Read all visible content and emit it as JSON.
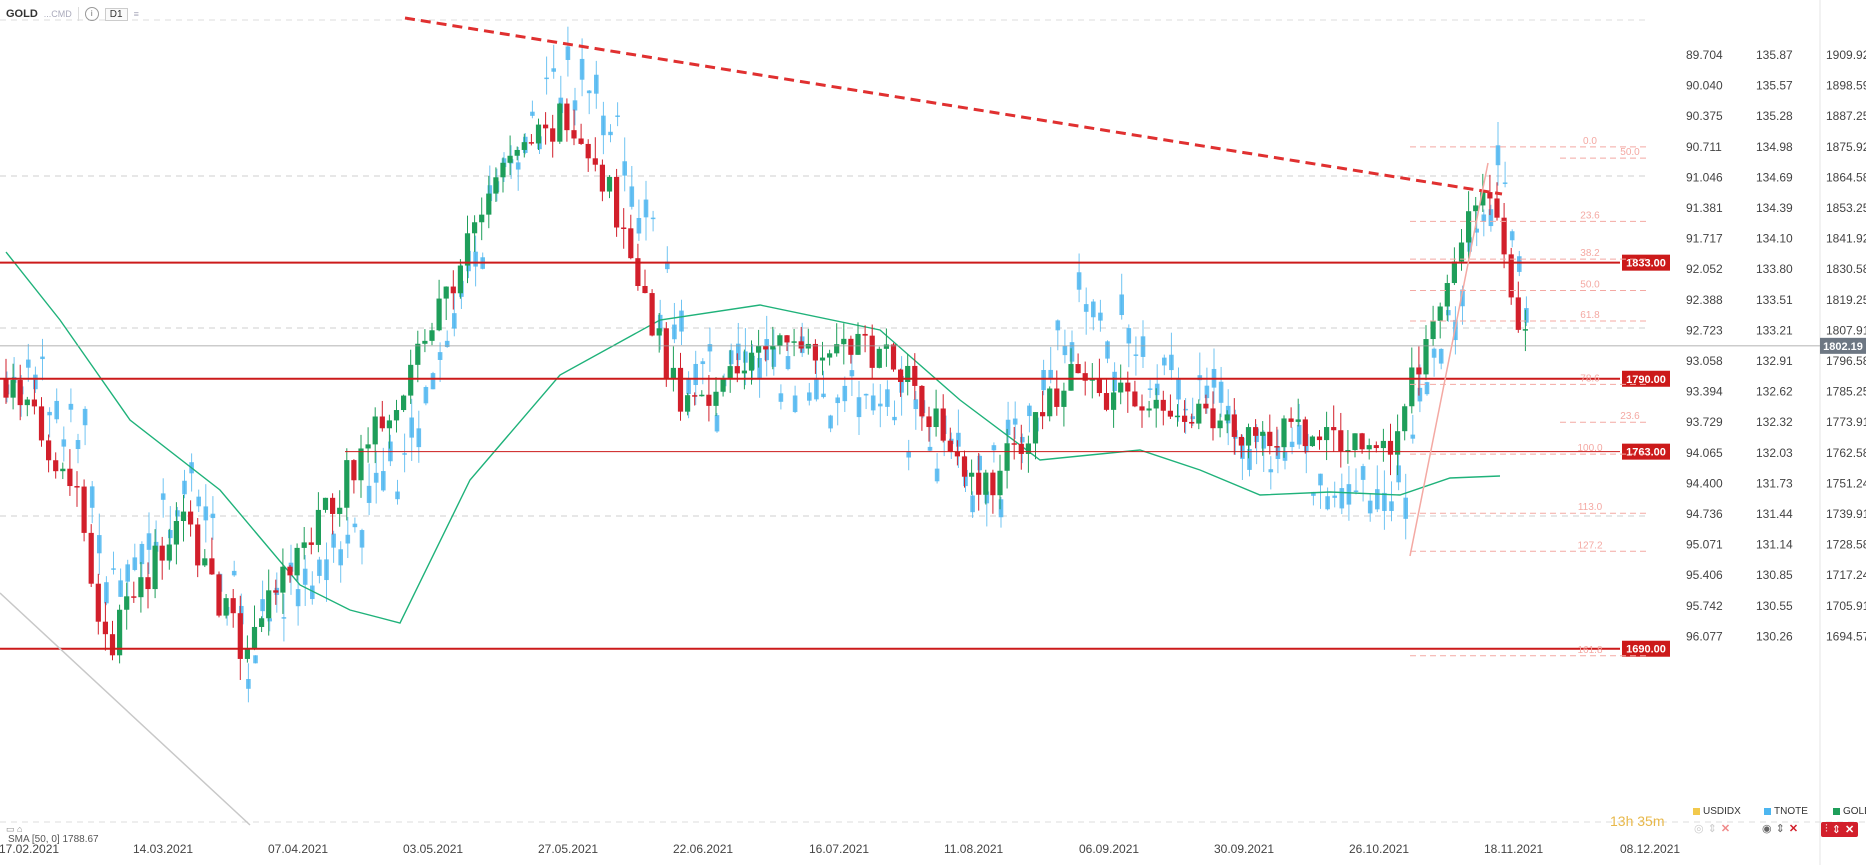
{
  "toolbar": {
    "symbol": "GOLD",
    "symbol_sub": "...CMD",
    "timeframe": "D1"
  },
  "sma_label": "SMA [50, 0] 1788.67",
  "timer": "13h 35m",
  "legend": [
    {
      "name": "USDIDX",
      "color": "#f2c94c"
    },
    {
      "name": "TNOTE",
      "color": "#4db6f0"
    },
    {
      "name": "GOLD",
      "color": "#1e9e5a"
    }
  ],
  "colors": {
    "up": "#1e9e5a",
    "down": "#d21f2b",
    "secondary": "#4db6f0",
    "sma": "#1fb27a",
    "level": "#cc1a1a",
    "fib": "#f4a9a3"
  },
  "chart_data": {
    "type": "candlestick",
    "axis_usdidx": [
      "89.704",
      "90.040",
      "90.375",
      "90.711",
      "91.046",
      "91.381",
      "91.717",
      "92.052",
      "92.388",
      "92.723",
      "93.058",
      "93.394",
      "93.729",
      "94.065",
      "94.400",
      "94.736",
      "95.071",
      "95.406",
      "95.742",
      "96.077"
    ],
    "axis_tnote": [
      "135.87",
      "135.57",
      "135.28",
      "134.98",
      "134.69",
      "134.39",
      "134.10",
      "133.80",
      "133.51",
      "133.21",
      "132.91",
      "132.62",
      "132.32",
      "132.03",
      "131.73",
      "131.44",
      "131.14",
      "130.85",
      "130.55",
      "130.26"
    ],
    "axis_gold": [
      "1909.92",
      "1898.59",
      "1887.25",
      "1875.92",
      "1864.58",
      "1853.25",
      "1841.92",
      "1830.58",
      "1819.25",
      "1807.91",
      "1796.58",
      "1785.25",
      "1773.91",
      "1762.58",
      "1751.24",
      "1739.91",
      "1728.58",
      "1717.24",
      "1705.91",
      "1694.57"
    ],
    "x_labels": [
      "17.02.2021",
      "14.03.2021",
      "07.04.2021",
      "03.05.2021",
      "27.05.2021",
      "22.06.2021",
      "16.07.2021",
      "11.08.2021",
      "06.09.2021",
      "30.09.2021",
      "26.10.2021",
      "18.11.2021",
      "08.12.2021"
    ],
    "current_price": "1802.19",
    "levels": [
      {
        "label": "1833.00",
        "value": 1833.0
      },
      {
        "label": "1790.00",
        "value": 1790.0
      },
      {
        "label": "1763.00",
        "value": 1763.0
      },
      {
        "label": "1690.00",
        "value": 1690.0
      }
    ],
    "fib_levels": [
      {
        "label": "0.0",
        "value": 1875.9
      },
      {
        "label": "50.0",
        "value": 1871.7
      },
      {
        "label": "23.6",
        "value": 1848.3
      },
      {
        "label": "38.2",
        "value": 1834.3
      },
      {
        "label": "50.0",
        "value": 1822.7
      },
      {
        "label": "61.8",
        "value": 1811.4
      },
      {
        "label": "78.6",
        "value": 1787.9
      },
      {
        "label": "23.6",
        "value": 1773.9
      },
      {
        "label": "100.0",
        "value": 1762.1
      },
      {
        "label": "113.0",
        "value": 1740.2
      },
      {
        "label": "127.2",
        "value": 1726.1
      },
      {
        "label": "161.8",
        "value": 1687.4
      }
    ]
  }
}
